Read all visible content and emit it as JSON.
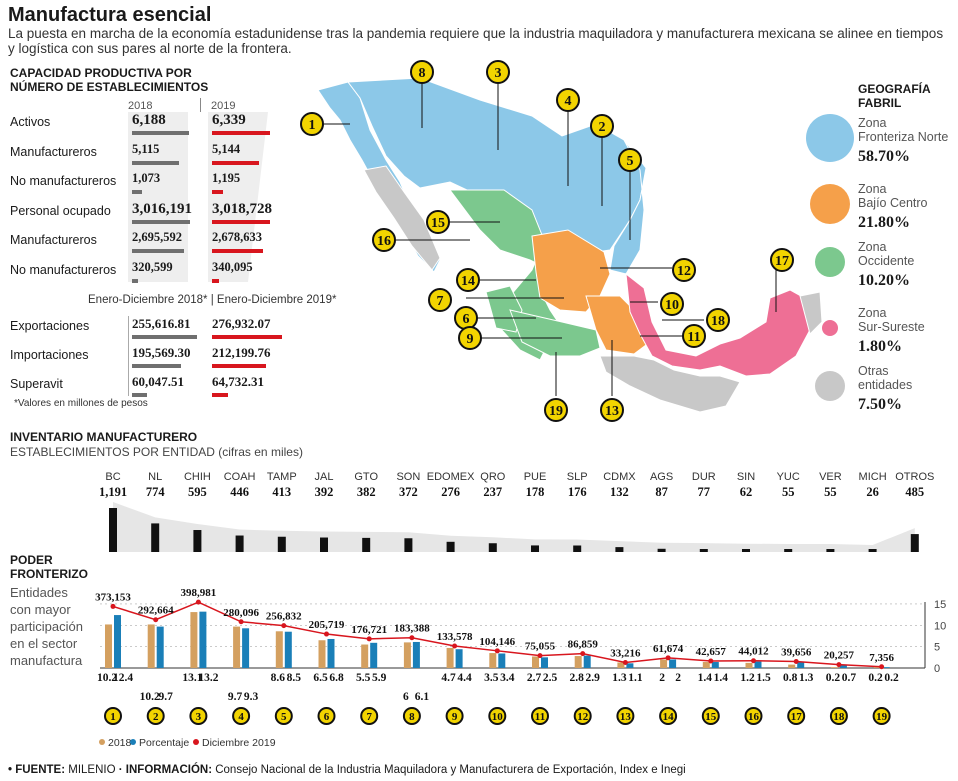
{
  "header": {
    "title": "Manufactura esencial",
    "subtitle": "La puesta en marcha de la economía estadunidense tras la pandemia requiere que la industria maquiladora y manufacturera mexicana se alinee en tiempos y logística con sus pares al norte de la frontera."
  },
  "capacity": {
    "heading_line1": "CAPACIDAD PRODUCTIVA POR",
    "heading_line2": "NÚMERO DE ESTABLECIMIENTOS",
    "year1": "2018",
    "year2": "2019",
    "rows": [
      {
        "label": "Activos",
        "v2018": "6,188",
        "v2019": "6,339",
        "bold": true
      },
      {
        "label": "Manufactureros",
        "v2018": "5,115",
        "v2019": "5,144",
        "bold": false
      },
      {
        "label": "No manufactureros",
        "v2018": "1,073",
        "v2019": "1,195",
        "bold": false
      },
      {
        "label": "Personal ocupado",
        "v2018": "3,016,191",
        "v2019": "3,018,728",
        "bold": true
      },
      {
        "label": "Manufactureros",
        "v2018": "2,695,592",
        "v2019": "2,678,633",
        "bold": false
      },
      {
        "label": "No manufactureros",
        "v2018": "320,599",
        "v2019": "340,095",
        "bold": false
      }
    ],
    "period_label": "Enero-Diciembre 2018*  |  Enero-Diciembre 2019*",
    "trade_rows": [
      {
        "label": "Exportaciones",
        "v2018": "255,616.81",
        "v2019": "276,932.07"
      },
      {
        "label": "Importaciones",
        "v2018": "195,569.30",
        "v2019": "212,199.76"
      },
      {
        "label": "Superavit",
        "v2018": "60,047.51",
        "v2019": "64,732.31"
      }
    ],
    "note": "*Valores en millones de pesos"
  },
  "geography": {
    "heading_line1": "GEOGRAFÍA",
    "heading_line2": "FABRIL",
    "zones": [
      {
        "name_line1": "Zona",
        "name_line2": "Fronteriza Norte",
        "pct": "58.70%",
        "color": "#8cc8e8"
      },
      {
        "name_line1": "Zona",
        "name_line2": "Bajío Centro",
        "pct": "21.80%",
        "color": "#f5a04a"
      },
      {
        "name_line1": "Zona",
        "name_line2": "Occidente",
        "pct": "10.20%",
        "color": "#7cc88e"
      },
      {
        "name_line1": "Zona",
        "name_line2": "Sur-Sureste",
        "pct": "1.80%",
        "color": "#ee6f95"
      },
      {
        "name_line1": "Otras",
        "name_line2": "entidades",
        "pct": "7.50%",
        "color": "#c8c8c8"
      }
    ],
    "map_markers": [
      "1",
      "2",
      "3",
      "4",
      "5",
      "6",
      "7",
      "8",
      "9",
      "10",
      "11",
      "12",
      "13",
      "14",
      "15",
      "16",
      "17",
      "18",
      "19"
    ]
  },
  "inventory": {
    "heading": "INVENTARIO MANUFACTURERO",
    "subheading": "ESTABLECIMIENTOS POR ENTIDAD (cifras en miles)"
  },
  "border": {
    "heading_line1": "PODER",
    "heading_line2": "FRONTERIZO",
    "desc": [
      "Entidades",
      "con mayor",
      "participación",
      "en el sector",
      "manufactura"
    ],
    "legend": [
      "2018",
      "Porcentaje",
      "Diciembre 2019"
    ]
  },
  "chart_data": [
    {
      "type": "bar",
      "title": "ESTABLECIMIENTOS POR ENTIDAD (cifras en miles)",
      "categories": [
        "BC",
        "NL",
        "CHIH",
        "COAH",
        "TAMP",
        "JAL",
        "GTO",
        "SON",
        "EDOMEX",
        "QRO",
        "PUE",
        "SLP",
        "CDMX",
        "AGS",
        "DUR",
        "SIN",
        "YUC",
        "VER",
        "MICH",
        "OTROS"
      ],
      "values": [
        1191,
        774,
        595,
        446,
        413,
        392,
        382,
        372,
        276,
        237,
        178,
        176,
        132,
        87,
        77,
        62,
        55,
        55,
        26,
        485
      ],
      "labels": [
        "1,191",
        "774",
        "595",
        "446",
        "413",
        "392",
        "382",
        "372",
        "276",
        "237",
        "178",
        "176",
        "132",
        "87",
        "77",
        "62",
        "55",
        "55",
        "26",
        "485"
      ]
    },
    {
      "type": "bar",
      "title": "PODER FRONTERIZO",
      "categories": [
        "1",
        "2",
        "3",
        "4",
        "5",
        "6",
        "7",
        "8",
        "9",
        "10",
        "11",
        "12",
        "13",
        "14",
        "15",
        "16",
        "17",
        "18",
        "19"
      ],
      "ylim": [
        0,
        15
      ],
      "yticks": [
        "0",
        "5",
        "10",
        "15"
      ],
      "series": [
        {
          "name": "2018",
          "values": [
            10.2,
            10.2,
            13.1,
            9.7,
            8.6,
            6.5,
            5.5,
            6,
            4.7,
            3.5,
            2.7,
            2.8,
            1.3,
            2,
            1.4,
            1.2,
            0.8,
            0.2,
            0.2
          ],
          "labels": [
            "10.2",
            "10.2",
            "13.1",
            "9.7",
            "8.6",
            "6.5",
            "5.5",
            "6",
            "4.7",
            "3.5",
            "2.7",
            "2.8",
            "1.3",
            "2",
            "1.4",
            "1.2",
            "0.8",
            "0.2",
            "0.2"
          ],
          "color": "#d4a060"
        },
        {
          "name": "Porcentaje",
          "values": [
            12.4,
            9.7,
            13.2,
            9.3,
            8.5,
            6.8,
            5.9,
            6.1,
            4.4,
            3.4,
            2.5,
            2.9,
            1.1,
            2,
            1.4,
            1.5,
            1.3,
            0.7,
            0.2
          ],
          "labels": [
            "12.4",
            "9.7",
            "13.2",
            "9.3",
            "8.5",
            "6.8",
            "5.9",
            "6.1",
            "4.4",
            "3.4",
            "2.5",
            "2.9",
            "1.1",
            "2",
            "1.4",
            "1.5",
            "1.3",
            "0.7",
            "0.2"
          ],
          "color": "#1a7fb8"
        },
        {
          "name": "Diciembre 2019",
          "values": [
            373153,
            292664,
            398981,
            280096,
            256832,
            205719,
            176721,
            183388,
            133578,
            104146,
            75055,
            86859,
            33216,
            61674,
            42657,
            44012,
            39656,
            20257,
            7356
          ],
          "labels": [
            "373,153",
            "292,664",
            "398,981",
            "280,096",
            "256,832",
            "205,719",
            "176,721",
            "183,388",
            "133,578",
            "104,146",
            "75,055",
            "86,859",
            "33,216",
            "61,674",
            "42,657",
            "44,012",
            "39,656",
            "20,257",
            "7,356"
          ],
          "color": "#d8161e"
        }
      ]
    }
  ],
  "footer": {
    "source_label": "• FUENTE:",
    "source": "MILENIO",
    "info_label": "· INFORMACIÓN:",
    "info": "Consejo Nacional de la Industria Maquiladora y Manufacturera de Exportación, Index e Inegi"
  }
}
